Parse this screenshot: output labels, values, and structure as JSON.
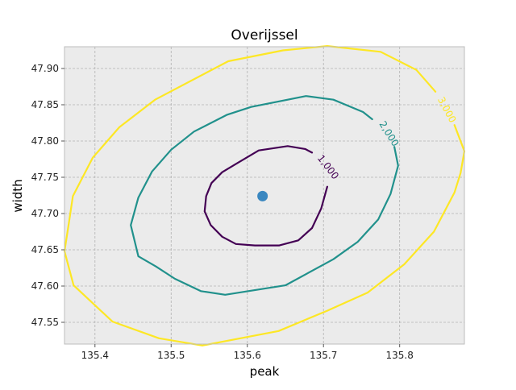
{
  "chart_data": {
    "type": "contour",
    "title": "Overijssel",
    "xlabel": "peak",
    "ylabel": "width",
    "xlim": [
      135.36,
      135.885
    ],
    "ylim": [
      47.52,
      47.93
    ],
    "xticks": [
      135.4,
      135.5,
      135.6,
      135.7,
      135.8
    ],
    "xtick_labels": [
      "135.4",
      "135.5",
      "135.6",
      "135.7",
      "135.8"
    ],
    "yticks": [
      47.55,
      47.6,
      47.65,
      47.7,
      47.75,
      47.8,
      47.85,
      47.9
    ],
    "ytick_labels": [
      "47.55",
      "47.60",
      "47.65",
      "47.70",
      "47.75",
      "47.80",
      "47.85",
      "47.90"
    ],
    "grid": true,
    "background": "#ebebeb",
    "center_point": {
      "x": 135.62,
      "y": 47.724,
      "color": "#3a87c0"
    },
    "contours": [
      {
        "level": "1,000",
        "color": "#440154",
        "label_pos": {
          "x": 135.706,
          "y": 47.764
        },
        "label_rotation": 52,
        "points": [
          [
            135.705,
            47.737
          ],
          [
            135.697,
            47.707
          ],
          [
            135.685,
            47.68
          ],
          [
            135.667,
            47.663
          ],
          [
            135.642,
            47.656
          ],
          [
            135.61,
            47.656
          ],
          [
            135.585,
            47.658
          ],
          [
            135.567,
            47.668
          ],
          [
            135.552,
            47.684
          ],
          [
            135.544,
            47.703
          ],
          [
            135.546,
            47.724
          ],
          [
            135.553,
            47.742
          ],
          [
            135.567,
            47.757
          ],
          [
            135.586,
            47.769
          ],
          [
            135.615,
            47.787
          ],
          [
            135.653,
            47.793
          ],
          [
            135.676,
            47.789
          ],
          [
            135.685,
            47.784
          ]
        ]
      },
      {
        "level": "2,000",
        "color": "#21918c",
        "label_pos": {
          "x": 135.786,
          "y": 47.81
        },
        "label_rotation": 58,
        "points": [
          [
            135.793,
            47.792
          ],
          [
            135.798,
            47.766
          ],
          [
            135.788,
            47.727
          ],
          [
            135.772,
            47.692
          ],
          [
            135.745,
            47.661
          ],
          [
            135.713,
            47.637
          ],
          [
            135.65,
            47.601
          ],
          [
            135.571,
            47.588
          ],
          [
            135.539,
            47.593
          ],
          [
            135.505,
            47.61
          ],
          [
            135.48,
            47.627
          ],
          [
            135.457,
            47.641
          ],
          [
            135.447,
            47.684
          ],
          [
            135.457,
            47.722
          ],
          [
            135.475,
            47.758
          ],
          [
            135.5,
            47.788
          ],
          [
            135.53,
            47.813
          ],
          [
            135.573,
            47.836
          ],
          [
            135.605,
            47.847
          ],
          [
            135.677,
            47.862
          ],
          [
            135.713,
            47.857
          ],
          [
            135.752,
            47.84
          ],
          [
            135.764,
            47.83
          ]
        ]
      },
      {
        "level": "3,000",
        "color": "#fde725",
        "label_pos": {
          "x": 135.862,
          "y": 47.843
        },
        "label_rotation": 62,
        "points": [
          [
            135.872,
            47.822
          ],
          [
            135.885,
            47.786
          ],
          [
            135.88,
            47.756
          ],
          [
            135.872,
            47.729
          ],
          [
            135.845,
            47.675
          ],
          [
            135.806,
            47.63
          ],
          [
            135.758,
            47.591
          ],
          [
            135.705,
            47.566
          ],
          [
            135.641,
            47.538
          ],
          [
            135.541,
            47.518
          ],
          [
            135.484,
            47.528
          ],
          [
            135.423,
            47.551
          ],
          [
            135.372,
            47.601
          ],
          [
            135.36,
            47.648
          ],
          [
            135.366,
            47.689
          ],
          [
            135.371,
            47.724
          ],
          [
            135.397,
            47.777
          ],
          [
            135.432,
            47.819
          ],
          [
            135.479,
            47.857
          ],
          [
            135.575,
            47.91
          ],
          [
            135.647,
            47.925
          ],
          [
            135.705,
            47.931
          ],
          [
            135.775,
            47.923
          ],
          [
            135.822,
            47.898
          ],
          [
            135.847,
            47.868
          ]
        ]
      }
    ]
  }
}
